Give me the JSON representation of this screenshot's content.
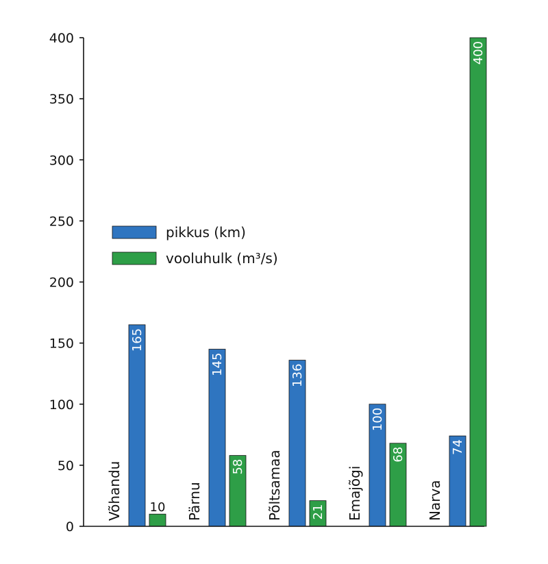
{
  "chart_data": {
    "type": "bar",
    "categories": [
      "Võhandu",
      "Pärnu",
      "Põltsamaa",
      "Emajõgi",
      "Narva"
    ],
    "series": [
      {
        "name": "pikkus (km)",
        "values": [
          165,
          145,
          136,
          100,
          74
        ],
        "color": "#2f75c0"
      },
      {
        "name": "vooluhulk (m³/s)",
        "values": [
          10,
          58,
          21,
          68,
          400
        ],
        "color": "#2e9e47"
      }
    ],
    "yticks": [
      "0",
      "50",
      "100",
      "150",
      "200",
      "250",
      "300",
      "350",
      "400"
    ],
    "ylim": [
      0,
      400
    ],
    "legend_position": "left",
    "grid": false
  }
}
